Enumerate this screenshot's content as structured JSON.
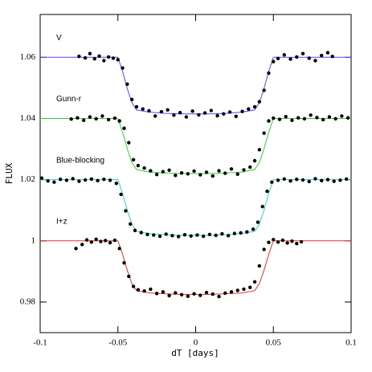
{
  "chart_data": {
    "type": "scatter",
    "xlabel": "dT [days]",
    "ylabel": "FLUX",
    "xlim": [
      -0.1,
      0.1
    ],
    "ylim": [
      0.97,
      1.074
    ],
    "xticks": [
      -0.1,
      -0.05,
      0,
      0.05,
      0.1
    ],
    "yticks": [
      0.98,
      1,
      1.02,
      1.04,
      1.06
    ],
    "marker_color": "#000000",
    "fit_x": [
      -0.1,
      -0.05,
      -0.047,
      -0.044,
      -0.041,
      -0.038,
      -0.03,
      -0.02,
      -0.01,
      0,
      0.01,
      0.02,
      0.03,
      0.038,
      0.041,
      0.044,
      0.047,
      0.05,
      0.1
    ],
    "series": [
      {
        "name": "V",
        "color": "#4a4aff",
        "x": [
          -0.075,
          -0.071,
          -0.068,
          -0.065,
          -0.062,
          -0.059,
          -0.056,
          -0.053,
          -0.05,
          -0.047,
          -0.044,
          -0.041,
          -0.038,
          -0.034,
          -0.03,
          -0.026,
          -0.022,
          -0.018,
          -0.014,
          -0.01,
          -0.006,
          -0.002,
          0.002,
          0.006,
          0.01,
          0.014,
          0.018,
          0.022,
          0.026,
          0.03,
          0.034,
          0.038,
          0.041,
          0.044,
          0.047,
          0.05,
          0.053,
          0.057,
          0.061,
          0.065,
          0.069,
          0.073,
          0.077,
          0.081,
          0.085,
          0.088
        ],
        "values": [
          1.0603,
          1.0598,
          1.0612,
          1.0595,
          1.0604,
          1.0589,
          1.0601,
          1.0597,
          1.0592,
          1.0565,
          1.0512,
          1.0462,
          1.0438,
          1.0431,
          1.0425,
          1.0408,
          1.0422,
          1.0428,
          1.0411,
          1.0419,
          1.0405,
          1.0424,
          1.0412,
          1.0418,
          1.0426,
          1.0409,
          1.0415,
          1.0421,
          1.0407,
          1.0423,
          1.0431,
          1.0438,
          1.0455,
          1.0492,
          1.0548,
          1.0586,
          1.0596,
          1.0608,
          1.0594,
          1.0601,
          1.0612,
          1.0597,
          1.0589,
          1.0606,
          1.0615,
          1.0603
        ],
        "fit_values": [
          1.06,
          1.06,
          1.0554,
          1.0498,
          1.0452,
          1.0428,
          1.0421,
          1.0417,
          1.0415,
          1.0415,
          1.0415,
          1.0417,
          1.0421,
          1.0428,
          1.0452,
          1.0498,
          1.0554,
          1.06,
          1.06
        ]
      },
      {
        "name": "Gunn-r",
        "color": "#33cc33",
        "x": [
          -0.08,
          -0.076,
          -0.072,
          -0.068,
          -0.064,
          -0.06,
          -0.056,
          -0.052,
          -0.049,
          -0.046,
          -0.043,
          -0.04,
          -0.037,
          -0.033,
          -0.029,
          -0.025,
          -0.021,
          -0.017,
          -0.013,
          -0.009,
          -0.005,
          -0.001,
          0.003,
          0.007,
          0.011,
          0.015,
          0.019,
          0.023,
          0.027,
          0.031,
          0.035,
          0.038,
          0.041,
          0.044,
          0.047,
          0.05,
          0.054,
          0.058,
          0.062,
          0.066,
          0.07,
          0.074,
          0.078,
          0.082,
          0.086,
          0.09,
          0.094,
          0.098
        ],
        "values": [
          1.0398,
          1.0402,
          1.0394,
          1.0405,
          1.0399,
          1.0408,
          1.0396,
          1.0401,
          1.0392,
          1.0368,
          1.0321,
          1.0265,
          1.0246,
          1.0238,
          1.0229,
          1.0217,
          1.0226,
          1.0231,
          1.0214,
          1.0222,
          1.0219,
          1.0228,
          1.0216,
          1.0224,
          1.0212,
          1.0229,
          1.0221,
          1.0235,
          1.0218,
          1.0232,
          1.0241,
          1.0262,
          1.0298,
          1.0352,
          1.0392,
          1.0401,
          1.0397,
          1.0406,
          1.0394,
          1.0402,
          1.0399,
          1.0411,
          1.0403,
          1.0396,
          1.0405,
          1.0399,
          1.0408,
          1.0402
        ],
        "fit_values": [
          1.04,
          1.04,
          1.0355,
          1.0301,
          1.0256,
          1.0233,
          1.0225,
          1.0222,
          1.022,
          1.022,
          1.022,
          1.0222,
          1.0225,
          1.0233,
          1.0256,
          1.0301,
          1.0355,
          1.04,
          1.04
        ]
      },
      {
        "name": "Blue-blocking",
        "color": "#33cccc",
        "x": [
          -0.099,
          -0.095,
          -0.091,
          -0.087,
          -0.083,
          -0.079,
          -0.075,
          -0.071,
          -0.067,
          -0.063,
          -0.059,
          -0.055,
          -0.051,
          -0.048,
          -0.045,
          -0.042,
          -0.039,
          -0.035,
          -0.031,
          -0.027,
          -0.023,
          -0.019,
          -0.015,
          -0.011,
          -0.007,
          -0.003,
          0.001,
          0.005,
          0.009,
          0.013,
          0.017,
          0.021,
          0.025,
          0.029,
          0.033,
          0.037,
          0.04,
          0.043,
          0.046,
          0.049,
          0.053,
          0.057,
          0.061,
          0.065,
          0.069,
          0.073,
          0.077,
          0.081,
          0.085,
          0.089,
          0.093,
          0.097
        ],
        "values": [
          1.0205,
          1.0196,
          1.0192,
          1.0201,
          1.0198,
          1.0203,
          1.0195,
          1.0199,
          1.0202,
          1.0197,
          1.0201,
          1.0198,
          1.0188,
          1.0152,
          1.0098,
          1.0055,
          1.0034,
          1.0027,
          1.0021,
          1.0019,
          1.0015,
          1.0022,
          1.0017,
          1.0014,
          1.002,
          1.0016,
          1.0019,
          1.0015,
          1.0021,
          1.0018,
          1.0023,
          1.0017,
          1.0024,
          1.0026,
          1.0029,
          1.0038,
          1.0061,
          1.0112,
          1.0162,
          1.0192,
          1.0198,
          1.0202,
          1.0196,
          1.0201,
          1.0199,
          1.0194,
          1.0203,
          1.0197,
          1.02,
          1.0195,
          1.0198,
          1.0202
        ],
        "fit_values": [
          1.02,
          1.02,
          1.0155,
          1.01,
          1.0054,
          1.0031,
          1.0024,
          1.002,
          1.0018,
          1.0018,
          1.0018,
          1.002,
          1.0024,
          1.0031,
          1.0054,
          1.01,
          1.0155,
          1.02,
          1.02
        ]
      },
      {
        "name": "I+z",
        "color": "#e03030",
        "x": [
          -0.077,
          -0.073,
          -0.07,
          -0.067,
          -0.064,
          -0.061,
          -0.058,
          -0.055,
          -0.052,
          -0.049,
          -0.046,
          -0.043,
          -0.04,
          -0.037,
          -0.033,
          -0.029,
          -0.025,
          -0.021,
          -0.017,
          -0.013,
          -0.009,
          -0.005,
          -0.001,
          0.003,
          0.007,
          0.011,
          0.015,
          0.019,
          0.023,
          0.027,
          0.031,
          0.035,
          0.038,
          0.041,
          0.044,
          0.047,
          0.05,
          0.053,
          0.056,
          0.059,
          0.062,
          0.065,
          0.068
        ],
        "values": [
          0.9975,
          0.9988,
          1.0003,
          0.9996,
          1.0005,
          0.9998,
          1.0001,
          0.9994,
          1.0002,
          0.9975,
          0.9928,
          0.9884,
          0.9851,
          0.984,
          0.9836,
          0.9842,
          0.9828,
          0.9833,
          0.9821,
          0.983,
          0.9824,
          0.9819,
          0.9827,
          0.9822,
          0.9831,
          0.9826,
          0.9818,
          0.9829,
          0.9833,
          0.9838,
          0.9842,
          0.9848,
          0.9866,
          0.9918,
          0.9972,
          0.9995,
          1.0004,
          0.9996,
          1.0002,
          0.9993,
          0.9999,
          0.9991,
          0.9997
        ],
        "fit_values": [
          1,
          1,
          0.9956,
          0.9904,
          0.986,
          0.9837,
          0.983,
          0.9827,
          0.9825,
          0.9825,
          0.9825,
          0.9827,
          0.983,
          0.9837,
          0.986,
          0.9904,
          0.9956,
          1,
          1
        ]
      }
    ]
  }
}
